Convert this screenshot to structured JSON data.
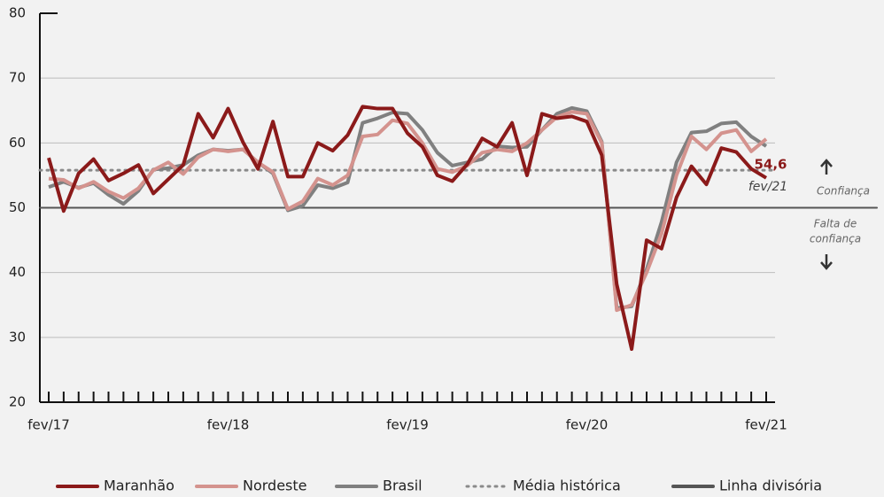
{
  "chart_data": {
    "type": "line",
    "categories": [
      "fev/17",
      null,
      null,
      null,
      null,
      null,
      null,
      null,
      null,
      null,
      null,
      null,
      "fev/18",
      null,
      null,
      null,
      null,
      null,
      null,
      null,
      null,
      null,
      null,
      null,
      "fev/19",
      null,
      null,
      null,
      null,
      null,
      null,
      null,
      null,
      null,
      null,
      null,
      "fev/20",
      null,
      null,
      null,
      null,
      null,
      null,
      null,
      null,
      null,
      null,
      null,
      "fev/21"
    ],
    "series": [
      {
        "name": "Maranhão",
        "color": "#8b1a1a",
        "values": [
          57.7,
          49.5,
          55.3,
          57.5,
          54.2,
          55.3,
          56.6,
          52.2,
          54.4,
          56.6,
          64.5,
          60.8,
          65.3,
          60.1,
          56,
          63.3,
          54.8,
          54.8,
          60,
          58.8,
          61.2,
          65.6,
          65.3,
          65.3,
          61.5,
          59.4,
          55,
          54.1,
          56.7,
          60.7,
          59.4,
          63.1,
          55,
          64.5,
          63.8,
          64.1,
          63.3,
          58.1,
          38.2,
          28.2,
          45,
          43.7,
          51.6,
          56.4,
          53.6,
          59.2,
          58.6,
          56,
          54.6
        ],
        "value_labels": [
          null,
          null,
          null,
          null,
          null,
          null,
          null,
          null,
          null,
          null,
          null,
          null,
          null,
          null,
          null,
          null,
          null,
          null,
          null,
          null,
          null,
          null,
          null,
          null,
          null,
          null,
          null,
          null,
          null,
          null,
          null,
          null,
          null,
          null,
          null,
          null,
          null,
          null,
          null,
          null,
          null,
          null,
          null,
          null,
          null,
          null,
          null,
          null,
          "54,6"
        ]
      },
      {
        "name": "Nordeste",
        "color": "#d4938e",
        "values": [
          54.5,
          54.3,
          53,
          54,
          52.5,
          51.5,
          53,
          55.8,
          57,
          55.2,
          57.8,
          59,
          58.7,
          59,
          57,
          55.5,
          49.8,
          51,
          54.5,
          53.5,
          55,
          61,
          61.3,
          63.5,
          63,
          60,
          56,
          55.5,
          56.5,
          58.5,
          59,
          58.7,
          60,
          62,
          64,
          64.8,
          64.5,
          60,
          34.2,
          35,
          40,
          46,
          55,
          61,
          59,
          61.5,
          62,
          58.7,
          60.6
        ]
      },
      {
        "name": "Brasil",
        "color": "#808080",
        "values": [
          53.2,
          54,
          53.1,
          53.8,
          52,
          50.6,
          52.6,
          55.9,
          56.1,
          56.6,
          58.1,
          59,
          58.8,
          59,
          57,
          55.3,
          49.6,
          50.3,
          53.5,
          53,
          53.9,
          63.1,
          63.8,
          64.7,
          64.5,
          62,
          58.5,
          56.5,
          57,
          57.5,
          59.5,
          59.3,
          59.4,
          62,
          64.5,
          65.4,
          64.9,
          60.2,
          34.5,
          34.8,
          40.5,
          47.8,
          57,
          61.6,
          61.8,
          63,
          63.2,
          61,
          59.5
        ]
      }
    ],
    "reference_lines": [
      {
        "name": "Média histórica",
        "value": 55.8,
        "color": "#8a8a8a",
        "style": "dotted"
      },
      {
        "name": "Linha divisória",
        "value": 50,
        "color": "#555555",
        "style": "solid"
      }
    ],
    "annotations": {
      "last_date": "fev/21",
      "confidence": "Confiança",
      "no_confidence": [
        "Falta de",
        "confiança"
      ]
    },
    "ylim": [
      20,
      80
    ],
    "yticks": [
      20,
      30,
      40,
      50,
      60,
      70,
      80
    ],
    "grid": true
  }
}
